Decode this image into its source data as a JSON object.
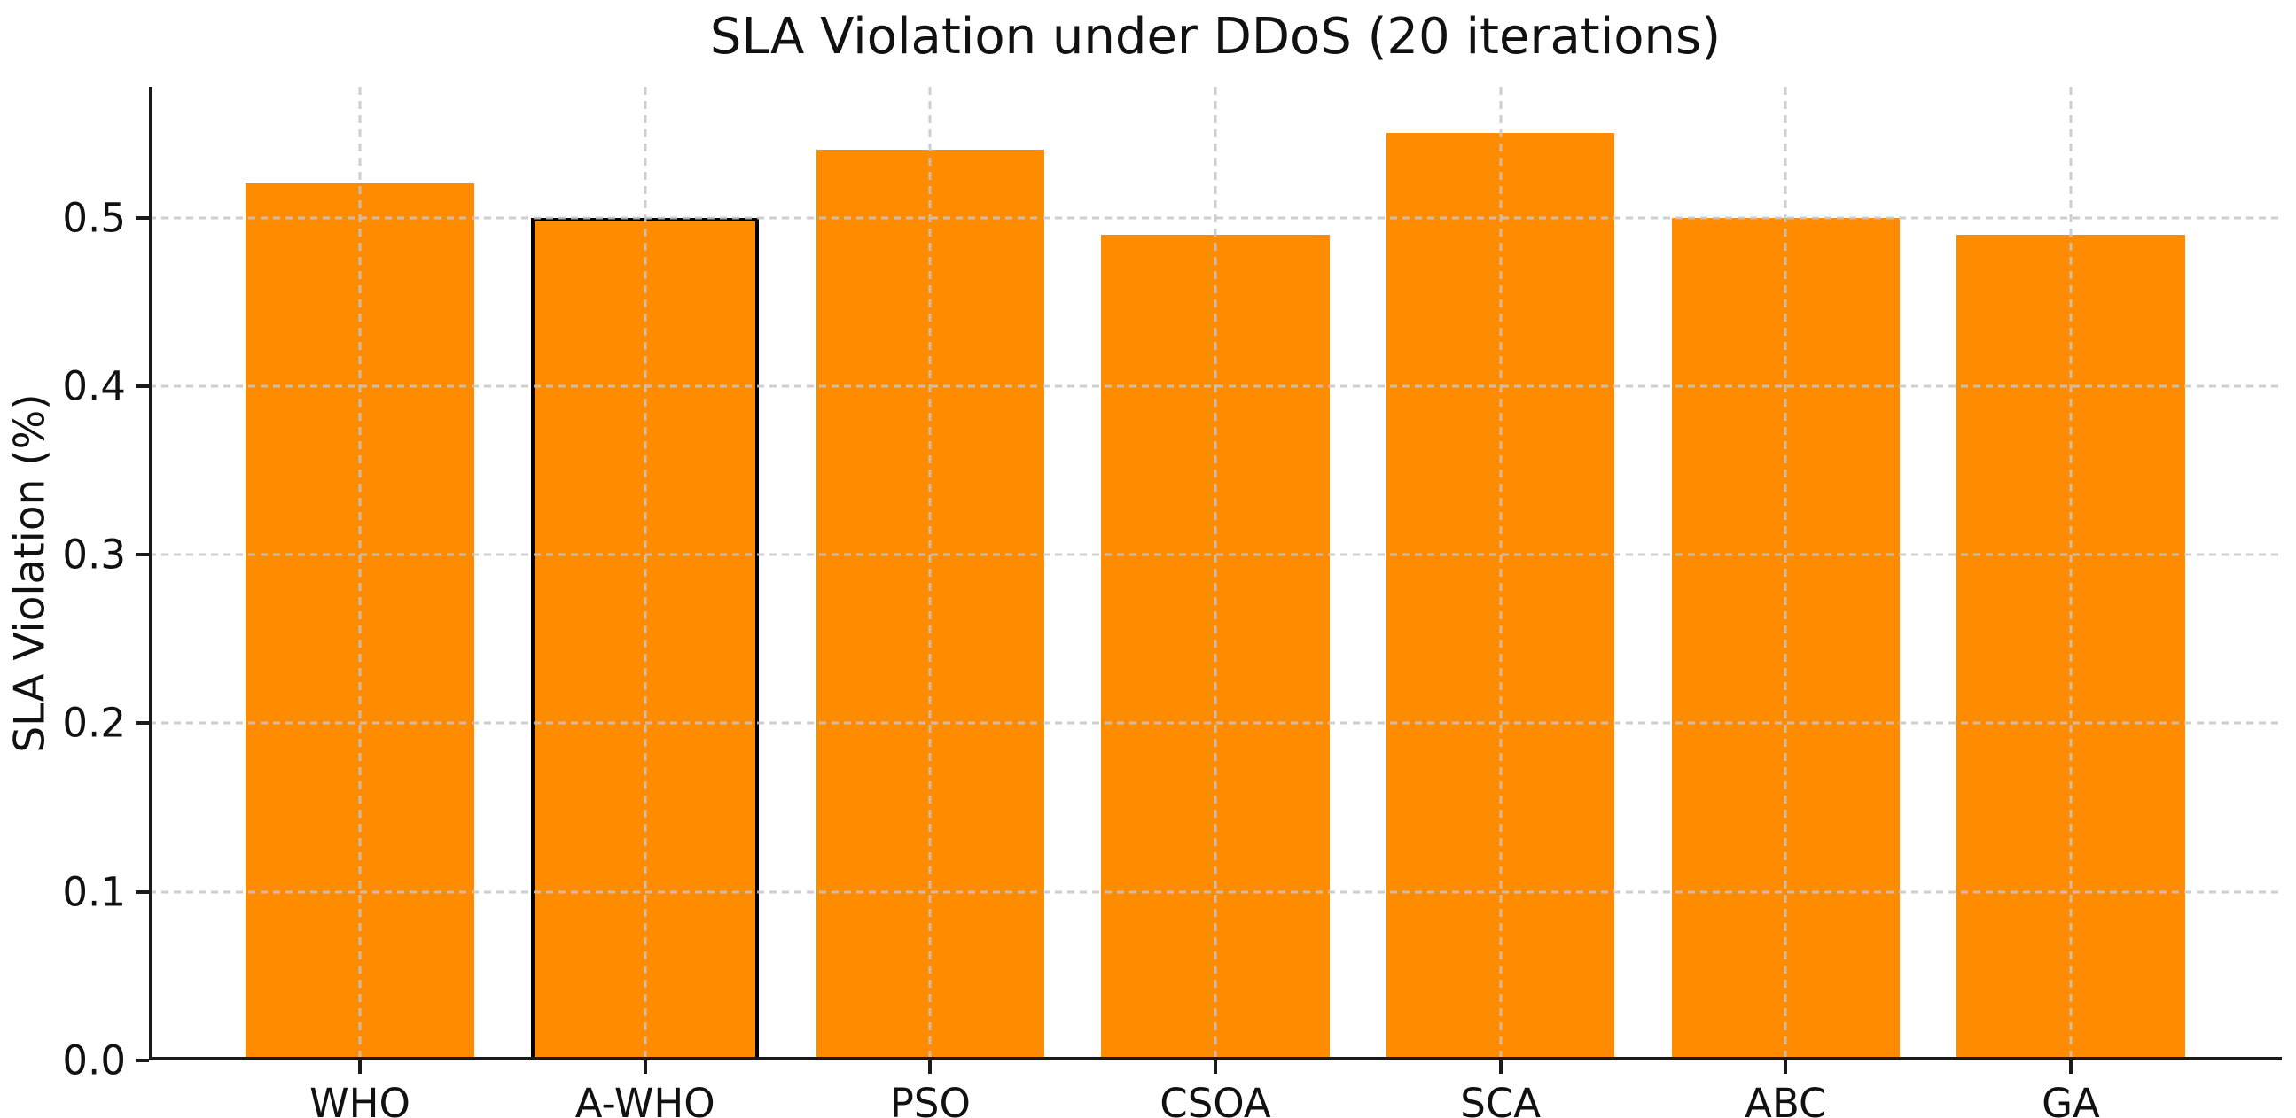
{
  "chart_data": {
    "type": "bar",
    "title": "SLA Violation under DDoS (20 iterations)",
    "xlabel": "",
    "ylabel": "SLA Violation (%)",
    "categories": [
      "WHO",
      "A-WHO",
      "PSO",
      "CSOA",
      "SCA",
      "ABC",
      "GA"
    ],
    "values": [
      0.52,
      0.5,
      0.54,
      0.49,
      0.55,
      0.5,
      0.49
    ],
    "highlighted_category": "A-WHO",
    "bar_color": "#FF8C00",
    "highlight_edge_color": "#000000",
    "ytick_labels": [
      "0.0",
      "0.1",
      "0.2",
      "0.3",
      "0.4",
      "0.5"
    ],
    "yticks": [
      0.0,
      0.1,
      0.2,
      0.3,
      0.4,
      0.5
    ],
    "ylim": [
      0,
      0.5775
    ],
    "grid": "dashed light-gray, horizontal and vertical, drawn above bars",
    "legend_position": "none"
  }
}
